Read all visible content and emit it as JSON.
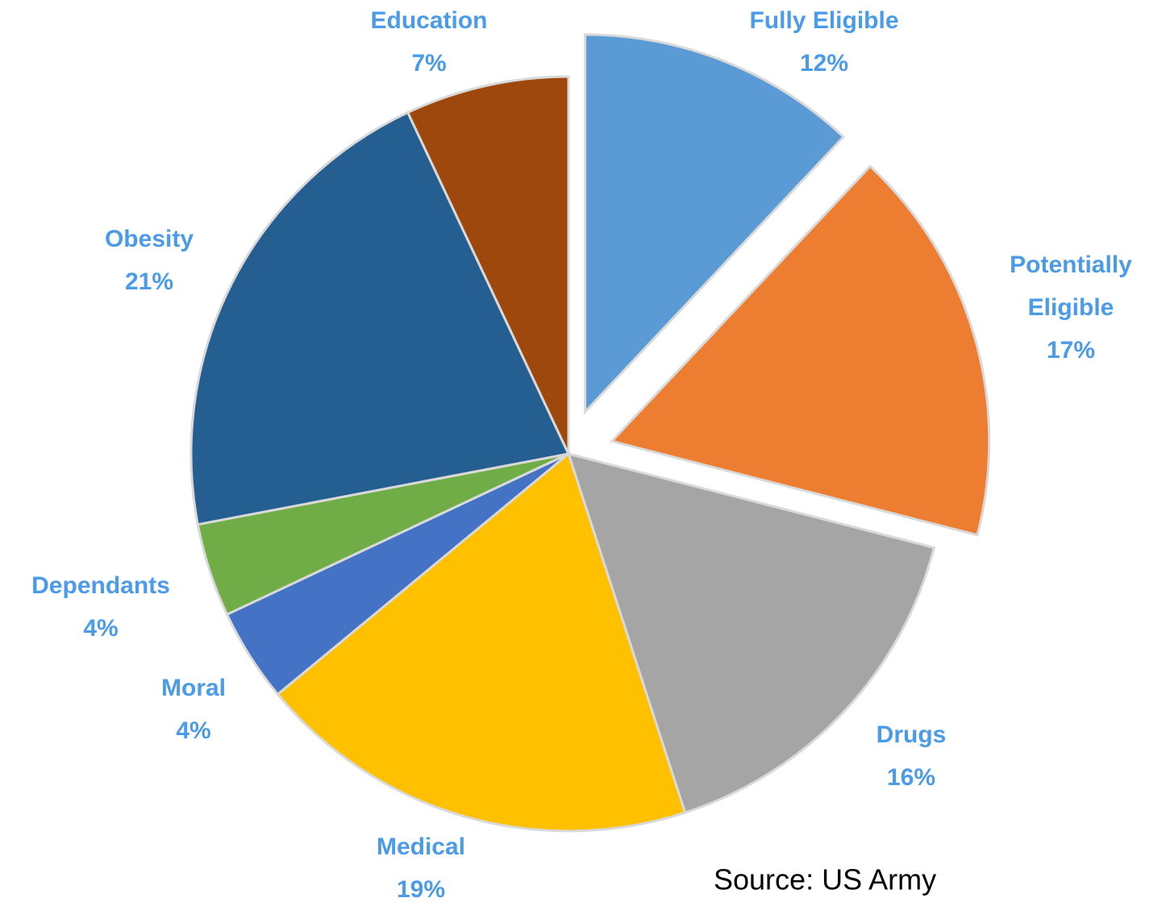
{
  "chart_data": {
    "type": "pie",
    "categories": [
      "Fully Eligible",
      "Potentially Eligible",
      "Drugs",
      "Medical",
      "Moral",
      "Dependants",
      "Obesity",
      "Education"
    ],
    "values": [
      12,
      17,
      16,
      19,
      4,
      4,
      21,
      7
    ],
    "value_labels": [
      "12%",
      "17%",
      "16%",
      "19%",
      "4%",
      "4%",
      "21%",
      "7%"
    ],
    "colors": [
      "#5b9bd5",
      "#ed7d31",
      "#a5a5a5",
      "#ffc000",
      "#4472c4",
      "#70ad47",
      "#255e91",
      "#9e480e"
    ],
    "explode": [
      true,
      true,
      false,
      false,
      false,
      false,
      false,
      false
    ],
    "label_color": "#4b9be9",
    "source": "Source: US Army"
  }
}
